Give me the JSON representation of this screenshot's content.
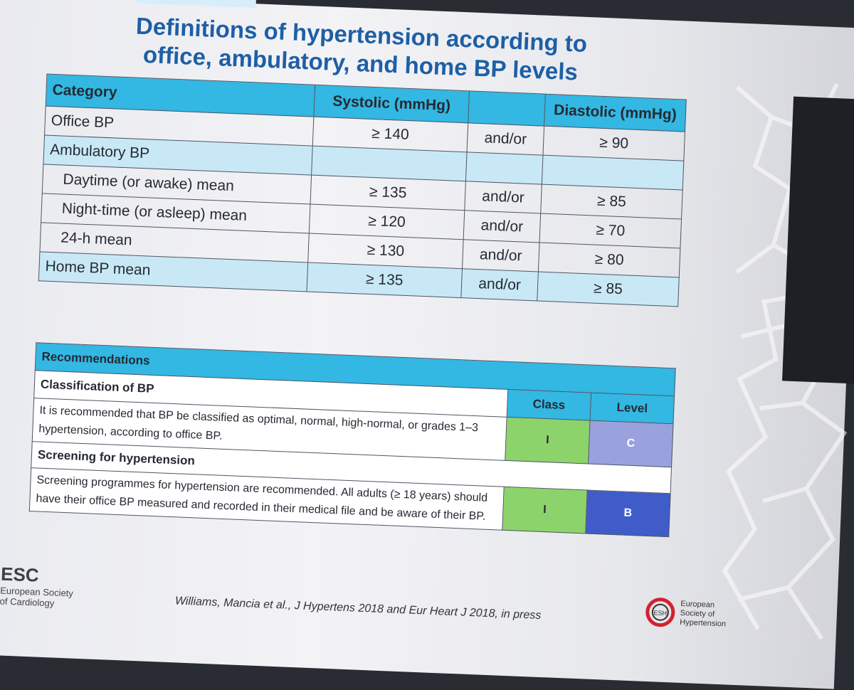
{
  "title": {
    "line1": "Definitions of hypertension according to",
    "line2": "office, ambulatory, and home BP levels"
  },
  "bp_table": {
    "headers": {
      "category": "Category",
      "systolic": "Systolic (mmHg)",
      "middle": "",
      "diastolic": "Diastolic (mmHg)"
    },
    "rows": [
      {
        "category": "Office BP",
        "systolic": "≥ 140",
        "conj": "and/or",
        "diastolic": "≥ 90"
      },
      {
        "category": "Ambulatory BP",
        "systolic": "",
        "conj": "",
        "diastolic": ""
      },
      {
        "category": "Daytime (or awake) mean",
        "systolic": "≥ 135",
        "conj": "and/or",
        "diastolic": "≥ 85"
      },
      {
        "category": "Night-time (or asleep) mean",
        "systolic": "≥ 120",
        "conj": "and/or",
        "diastolic": "≥ 70"
      },
      {
        "category": "24-h mean",
        "systolic": "≥ 130",
        "conj": "and/or",
        "diastolic": "≥ 80"
      },
      {
        "category": "Home BP mean",
        "systolic": "≥ 135",
        "conj": "and/or",
        "diastolic": "≥ 85"
      }
    ]
  },
  "recommendations": {
    "header": "Recommendations",
    "class_header": "Class",
    "level_header": "Level",
    "sections": [
      {
        "heading": "Classification of BP",
        "text": "It is recommended that BP be classified as optimal, normal, high-normal, or grades 1–3 hypertension, according to office BP.",
        "class": "I",
        "level": "C"
      },
      {
        "heading": "Screening for hypertension",
        "text": "Screening programmes for hypertension are recommended. All adults (≥ 18 years) should have their office BP measured and recorded in their medical file and be aware of their BP.",
        "class": "I",
        "level": "B"
      }
    ]
  },
  "footer": {
    "esc_name": "ESC",
    "esc_sub1": "European Society",
    "esc_sub2": "of Cardiology",
    "citation": "Williams, Mancia et al., J Hypertens 2018 and Eur Heart J 2018, in press",
    "esh_line1": "European",
    "esh_line2": "Society of",
    "esh_line3": "Hypertension",
    "esh_abbr": "ESH"
  },
  "colors": {
    "title": "#1e5fa5",
    "header_fill": "#33b7e3",
    "alt_row": "#c8e8f6",
    "class_I": "#8dd36b",
    "level_C": "#9aa2dd",
    "level_B": "#3f5cc9",
    "esc_red": "#d4202f"
  }
}
